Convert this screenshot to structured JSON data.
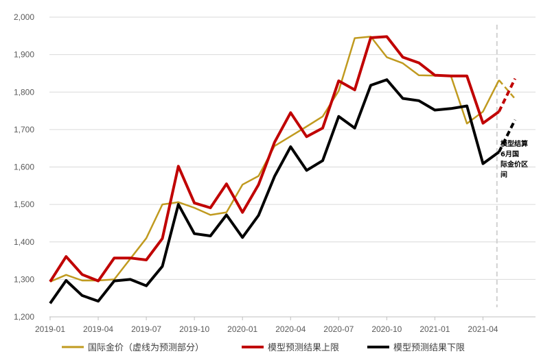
{
  "chart_data": {
    "type": "line",
    "title": "",
    "xlabel": "",
    "ylabel": "",
    "ylim": [
      1200,
      2000
    ],
    "yticks": [
      1200,
      1300,
      1400,
      1500,
      1600,
      1700,
      1800,
      1900,
      2000
    ],
    "ytick_labels": [
      "1,200",
      "1,300",
      "1,400",
      "1,500",
      "1,600",
      "1,700",
      "1,800",
      "1,900",
      "2,000"
    ],
    "x": [
      "2019-01",
      "2019-02",
      "2019-03",
      "2019-04",
      "2019-05",
      "2019-06",
      "2019-07",
      "2019-08",
      "2019-09",
      "2019-10",
      "2019-11",
      "2019-12",
      "2020-01",
      "2020-02",
      "2020-03",
      "2020-04",
      "2020-05",
      "2020-06",
      "2020-07",
      "2020-08",
      "2020-09",
      "2020-10",
      "2020-11",
      "2020-12",
      "2021-01",
      "2021-02",
      "2021-03",
      "2021-04",
      "2021-05",
      "2021-06"
    ],
    "xtick_labels": [
      "2019-01",
      "2019-04",
      "2019-07",
      "2019-10",
      "2020-01",
      "2020-04",
      "2020-07",
      "2020-10",
      "2021-01",
      "2021-04"
    ],
    "xtick_index": [
      0,
      3,
      6,
      9,
      12,
      15,
      18,
      21,
      24,
      27
    ],
    "grid": "horizontal",
    "legend_position": "bottom",
    "forecast_divider_at": "2021-05",
    "series": [
      {
        "name": "国际金价（虚线为预测部分）",
        "color": "#c09a1f",
        "values": [
          1294,
          1312,
          1297,
          1297,
          1300,
          1355,
          1410,
          1500,
          1506,
          1491,
          1472,
          1479,
          1553,
          1576,
          1656,
          1682,
          1708,
          1735,
          1803,
          1944,
          1948,
          1893,
          1877,
          1845,
          1844,
          1843,
          1716,
          1748,
          1832,
          1782
        ],
        "forecast_from": "2021-05"
      },
      {
        "name": "模型预测结果上限",
        "color": "#c00000",
        "values": [
          1294,
          1361,
          1313,
          1296,
          1357,
          1357,
          1352,
          1409,
          1602,
          1504,
          1491,
          1555,
          1479,
          1553,
          1666,
          1745,
          1681,
          1704,
          1830,
          1806,
          1945,
          1948,
          1893,
          1878,
          1845,
          1843,
          1843,
          1717,
          1748,
          1836
        ],
        "forecast_from": "2021-05"
      },
      {
        "name": "模型预测结果下限",
        "color": "#000000",
        "values": [
          1236,
          1297,
          1257,
          1242,
          1296,
          1300,
          1283,
          1335,
          1500,
          1422,
          1416,
          1472,
          1412,
          1471,
          1575,
          1654,
          1591,
          1617,
          1735,
          1704,
          1818,
          1833,
          1783,
          1777,
          1752,
          1756,
          1763,
          1609,
          1640,
          1726
        ],
        "forecast_from": "2021-05"
      }
    ],
    "annotation": "模型结算6月国际金价区间"
  },
  "legend": {
    "gold": "国际金价（虚线为预测部分）",
    "upper": "模型预测结果上限",
    "lower": "模型预测结果下限"
  },
  "annotation_lines": [
    "模型结算",
    "6月国",
    "际金价区",
    "间"
  ]
}
